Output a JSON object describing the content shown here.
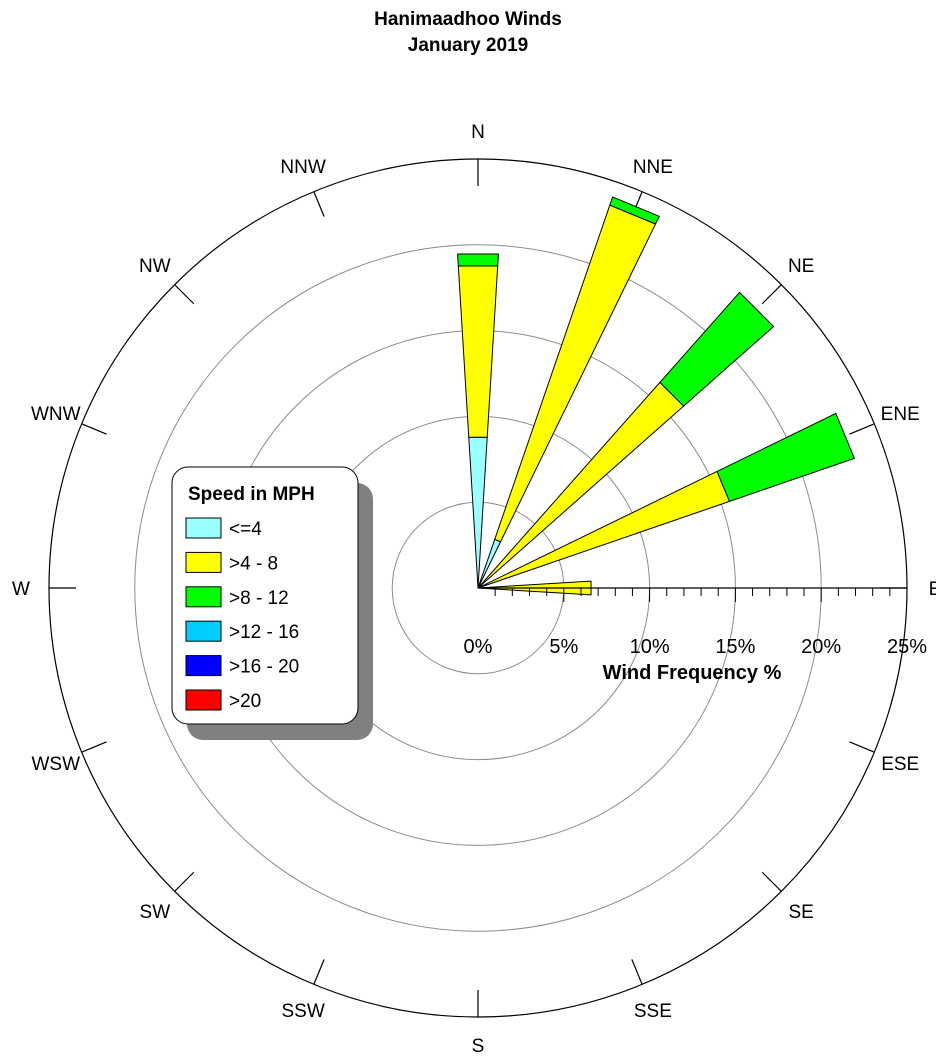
{
  "chart_data": {
    "type": "wind-rose",
    "title": "Hanimaadhoo Winds",
    "subtitle": "January 2019",
    "directions": [
      "N",
      "NNE",
      "NE",
      "ENE",
      "E",
      "ESE",
      "SE",
      "SSE",
      "S",
      "SSW",
      "SW",
      "WSW",
      "W",
      "WNW",
      "NW",
      "NNW"
    ],
    "radial_axis": {
      "label": "Wind Frequency %",
      "ticks": [
        "0%",
        "5%",
        "10%",
        "15%",
        "20%",
        "25%"
      ],
      "range": [
        0,
        25
      ],
      "rings": [
        5,
        10,
        15,
        20
      ]
    },
    "legend": {
      "title": "Speed in MPH",
      "placement": "left",
      "items": [
        {
          "label": "<=4",
          "color": "#99ffff"
        },
        {
          "label": ">4 - 8",
          "color": "#ffff00"
        },
        {
          "label": ">8 - 12",
          "color": "#00ff00"
        },
        {
          "label": ">12 - 16",
          "color": "#00ccff"
        },
        {
          "label": ">16 - 20",
          "color": "#0000ff"
        },
        {
          "label": ">20",
          "color": "#ff0000"
        }
      ]
    },
    "series": [
      {
        "name": "<=4",
        "values": [
          8.8,
          3.0,
          0,
          0,
          0,
          0,
          0,
          0,
          0,
          0,
          0,
          0,
          0,
          0,
          0,
          0
        ]
      },
      {
        "name": ">4 - 8",
        "values": [
          10.0,
          20.6,
          16.0,
          15.5,
          6.6,
          0,
          0,
          0,
          0,
          0,
          0,
          0,
          0,
          0,
          0,
          0
        ]
      },
      {
        "name": ">8 - 12",
        "values": [
          0.7,
          0.5,
          7.0,
          7.7,
          0,
          0,
          0,
          0,
          0,
          0,
          0,
          0,
          0,
          0,
          0,
          0
        ]
      },
      {
        "name": ">12 - 16",
        "values": [
          0,
          0,
          0,
          0,
          0,
          0,
          0,
          0,
          0,
          0,
          0,
          0,
          0,
          0,
          0,
          0
        ]
      },
      {
        "name": ">16 - 20",
        "values": [
          0,
          0,
          0,
          0,
          0,
          0,
          0,
          0,
          0,
          0,
          0,
          0,
          0,
          0,
          0,
          0
        ]
      },
      {
        "name": ">20",
        "values": [
          0,
          0,
          0,
          0,
          0,
          0,
          0,
          0,
          0,
          0,
          0,
          0,
          0,
          0,
          0,
          0
        ]
      }
    ]
  }
}
